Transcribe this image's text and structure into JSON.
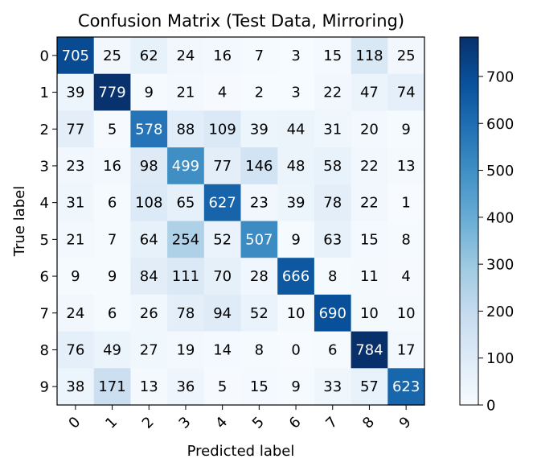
{
  "chart_data": {
    "type": "heatmap",
    "title": "Confusion Matrix (Test Data, Mirroring)",
    "xlabel": "Predicted label",
    "ylabel": "True label",
    "x_tick_labels": [
      "0",
      "1",
      "2",
      "3",
      "4",
      "5",
      "6",
      "7",
      "8",
      "9"
    ],
    "y_tick_labels": [
      "0",
      "1",
      "2",
      "3",
      "4",
      "5",
      "6",
      "7",
      "8",
      "9"
    ],
    "matrix": [
      [
        705,
        25,
        62,
        24,
        16,
        7,
        3,
        15,
        118,
        25
      ],
      [
        39,
        779,
        9,
        21,
        4,
        2,
        3,
        22,
        47,
        74
      ],
      [
        77,
        5,
        578,
        88,
        109,
        39,
        44,
        31,
        20,
        9
      ],
      [
        23,
        16,
        98,
        499,
        77,
        146,
        48,
        58,
        22,
        13
      ],
      [
        31,
        6,
        108,
        65,
        627,
        23,
        39,
        78,
        22,
        1
      ],
      [
        21,
        7,
        64,
        254,
        52,
        507,
        9,
        63,
        15,
        8
      ],
      [
        9,
        9,
        84,
        111,
        70,
        28,
        666,
        8,
        11,
        4
      ],
      [
        24,
        6,
        26,
        78,
        94,
        52,
        10,
        690,
        10,
        10
      ],
      [
        76,
        49,
        27,
        19,
        14,
        8,
        0,
        6,
        784,
        17
      ],
      [
        38,
        171,
        13,
        36,
        5,
        15,
        9,
        33,
        57,
        623
      ]
    ],
    "colorbar": {
      "min": 0,
      "max": 784,
      "ticks": [
        0,
        100,
        200,
        300,
        400,
        500,
        600,
        700
      ],
      "colormap": "Blues"
    }
  }
}
